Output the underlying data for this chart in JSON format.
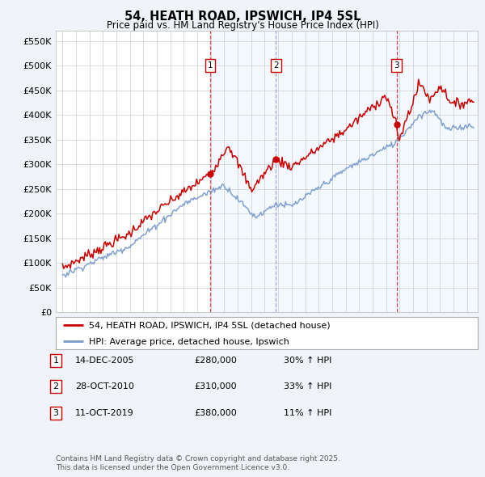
{
  "title": "54, HEATH ROAD, IPSWICH, IP4 5SL",
  "subtitle": "Price paid vs. HM Land Registry's House Price Index (HPI)",
  "legend_label_red": "54, HEATH ROAD, IPSWICH, IP4 5SL (detached house)",
  "legend_label_blue": "HPI: Average price, detached house, Ipswich",
  "footnote1": "Contains HM Land Registry data © Crown copyright and database right 2025.",
  "footnote2": "This data is licensed under the Open Government Licence v3.0.",
  "transactions": [
    {
      "num": 1,
      "date": "14-DEC-2005",
      "price": "£280,000",
      "hpi": "30% ↑ HPI"
    },
    {
      "num": 2,
      "date": "28-OCT-2010",
      "price": "£310,000",
      "hpi": "33% ↑ HPI"
    },
    {
      "num": 3,
      "date": "11-OCT-2019",
      "price": "£380,000",
      "hpi": "11% ↑ HPI"
    }
  ],
  "sale_dates_decimal": [
    2005.96,
    2010.83,
    2019.78
  ],
  "sale_prices": [
    280000,
    310000,
    380000
  ],
  "vline1_color": "#cc0000",
  "vline2_color": "#8888bb",
  "vline3_color": "#cc0000",
  "vline_style": "--",
  "vline_fill_color": "#ddeeff",
  "vline_fill_alpha": 0.35,
  "red_line_color": "#cc0000",
  "blue_line_color": "#7799cc",
  "background_color": "#f0f4f8",
  "plot_bg_color": "#ffffff",
  "grid_color": "#cccccc",
  "ylim": [
    0,
    570000
  ],
  "xlim_start": 1994.5,
  "xlim_end": 2025.8,
  "yticks": [
    0,
    50000,
    100000,
    150000,
    200000,
    250000,
    300000,
    350000,
    400000,
    450000,
    500000,
    550000
  ],
  "ytick_labels": [
    "£0",
    "£50K",
    "£100K",
    "£150K",
    "£200K",
    "£250K",
    "£300K",
    "£350K",
    "£400K",
    "£450K",
    "£500K",
    "£550K"
  ],
  "xticks": [
    1995,
    1996,
    1997,
    1998,
    1999,
    2000,
    2001,
    2002,
    2003,
    2004,
    2005,
    2006,
    2007,
    2008,
    2009,
    2010,
    2011,
    2012,
    2013,
    2014,
    2015,
    2016,
    2017,
    2018,
    2019,
    2020,
    2021,
    2022,
    2023,
    2024,
    2025
  ]
}
